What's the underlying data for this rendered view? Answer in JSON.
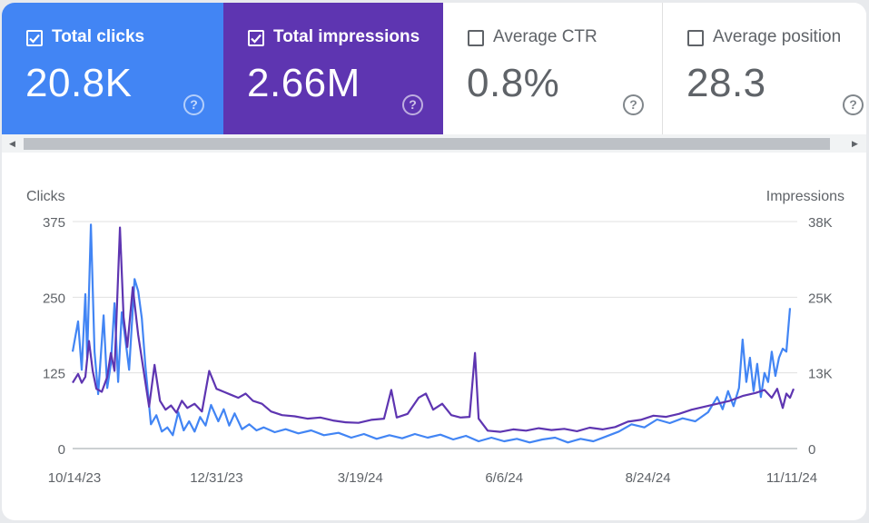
{
  "cards": {
    "clicks": {
      "label": "Total clicks",
      "value": "20.8K",
      "checked": true,
      "color": "#4285f4"
    },
    "impressions": {
      "label": "Total impressions",
      "value": "2.66M",
      "checked": true,
      "color": "#5e35b1"
    },
    "ctr": {
      "label": "Average CTR",
      "value": "0.8%",
      "checked": false
    },
    "position": {
      "label": "Average position",
      "value": "28.3",
      "checked": false
    },
    "help_glyph": "?"
  },
  "scrollbar": {
    "left_arrow": "◀",
    "right_arrow": "▶"
  },
  "chart_data": {
    "type": "line",
    "left_axis_title": "Clicks",
    "right_axis_title": "Impressions",
    "left_ticks": [
      "375",
      "250",
      "125",
      "0"
    ],
    "left_tick_values": [
      375,
      250,
      125,
      0
    ],
    "right_ticks": [
      "38K",
      "25K",
      "13K",
      "0"
    ],
    "x_tick_labels": [
      "10/14/23",
      "12/31/23",
      "3/19/24",
      "6/6/24",
      "8/24/24",
      "11/11/24"
    ],
    "x_start": "2023-10-13",
    "x_end": "2024-11-14",
    "x_tick_dates": [
      "2023-10-14",
      "2023-12-31",
      "2024-03-19",
      "2024-06-06",
      "2024-08-24",
      "2024-11-11"
    ],
    "ylim_left": [
      0,
      375
    ],
    "ylim_right": [
      0,
      38000
    ],
    "grid": true,
    "series": [
      {
        "name": "Clicks",
        "axis": "left",
        "color": "#4285f4",
        "points": [
          [
            "2023-10-13",
            160
          ],
          [
            "2023-10-16",
            210
          ],
          [
            "2023-10-18",
            130
          ],
          [
            "2023-10-20",
            255
          ],
          [
            "2023-10-21",
            150
          ],
          [
            "2023-10-23",
            370
          ],
          [
            "2023-10-25",
            160
          ],
          [
            "2023-10-27",
            90
          ],
          [
            "2023-10-30",
            220
          ],
          [
            "2023-11-01",
            100
          ],
          [
            "2023-11-03",
            140
          ],
          [
            "2023-11-05",
            240
          ],
          [
            "2023-11-07",
            110
          ],
          [
            "2023-11-09",
            225
          ],
          [
            "2023-11-11",
            180
          ],
          [
            "2023-11-13",
            130
          ],
          [
            "2023-11-16",
            280
          ],
          [
            "2023-11-18",
            260
          ],
          [
            "2023-11-20",
            215
          ],
          [
            "2023-11-22",
            135
          ],
          [
            "2023-11-25",
            40
          ],
          [
            "2023-11-28",
            55
          ],
          [
            "2023-12-01",
            28
          ],
          [
            "2023-12-04",
            35
          ],
          [
            "2023-12-07",
            22
          ],
          [
            "2023-12-10",
            60
          ],
          [
            "2023-12-13",
            30
          ],
          [
            "2023-12-16",
            45
          ],
          [
            "2023-12-19",
            28
          ],
          [
            "2023-12-22",
            52
          ],
          [
            "2023-12-25",
            38
          ],
          [
            "2023-12-28",
            72
          ],
          [
            "2024-01-01",
            45
          ],
          [
            "2024-01-04",
            65
          ],
          [
            "2024-01-07",
            38
          ],
          [
            "2024-01-10",
            58
          ],
          [
            "2024-01-14",
            32
          ],
          [
            "2024-01-18",
            40
          ],
          [
            "2024-01-22",
            30
          ],
          [
            "2024-01-26",
            35
          ],
          [
            "2024-02-01",
            27
          ],
          [
            "2024-02-07",
            32
          ],
          [
            "2024-02-14",
            25
          ],
          [
            "2024-02-21",
            30
          ],
          [
            "2024-02-28",
            22
          ],
          [
            "2024-03-07",
            26
          ],
          [
            "2024-03-14",
            18
          ],
          [
            "2024-03-21",
            24
          ],
          [
            "2024-03-28",
            16
          ],
          [
            "2024-04-04",
            22
          ],
          [
            "2024-04-11",
            17
          ],
          [
            "2024-04-18",
            24
          ],
          [
            "2024-04-25",
            18
          ],
          [
            "2024-05-02",
            23
          ],
          [
            "2024-05-09",
            15
          ],
          [
            "2024-05-16",
            21
          ],
          [
            "2024-05-23",
            12
          ],
          [
            "2024-05-30",
            18
          ],
          [
            "2024-06-06",
            12
          ],
          [
            "2024-06-13",
            16
          ],
          [
            "2024-06-20",
            10
          ],
          [
            "2024-06-27",
            15
          ],
          [
            "2024-07-04",
            18
          ],
          [
            "2024-07-11",
            10
          ],
          [
            "2024-07-18",
            16
          ],
          [
            "2024-07-25",
            12
          ],
          [
            "2024-08-01",
            20
          ],
          [
            "2024-08-08",
            28
          ],
          [
            "2024-08-15",
            40
          ],
          [
            "2024-08-22",
            35
          ],
          [
            "2024-08-29",
            48
          ],
          [
            "2024-09-05",
            42
          ],
          [
            "2024-09-12",
            50
          ],
          [
            "2024-09-19",
            45
          ],
          [
            "2024-09-26",
            60
          ],
          [
            "2024-10-01",
            85
          ],
          [
            "2024-10-04",
            65
          ],
          [
            "2024-10-07",
            95
          ],
          [
            "2024-10-10",
            70
          ],
          [
            "2024-10-13",
            100
          ],
          [
            "2024-10-15",
            180
          ],
          [
            "2024-10-17",
            110
          ],
          [
            "2024-10-19",
            150
          ],
          [
            "2024-10-21",
            95
          ],
          [
            "2024-10-23",
            140
          ],
          [
            "2024-10-25",
            85
          ],
          [
            "2024-10-27",
            125
          ],
          [
            "2024-10-29",
            110
          ],
          [
            "2024-10-31",
            160
          ],
          [
            "2024-11-02",
            120
          ],
          [
            "2024-11-04",
            150
          ],
          [
            "2024-11-06",
            165
          ],
          [
            "2024-11-08",
            160
          ],
          [
            "2024-11-10",
            232
          ]
        ]
      },
      {
        "name": "Impressions",
        "axis": "right",
        "color": "#5e35b1",
        "points": [
          [
            "2023-10-13",
            11000
          ],
          [
            "2023-10-16",
            12500
          ],
          [
            "2023-10-18",
            11000
          ],
          [
            "2023-10-20",
            12000
          ],
          [
            "2023-10-22",
            18000
          ],
          [
            "2023-10-24",
            13000
          ],
          [
            "2023-10-26",
            10000
          ],
          [
            "2023-10-29",
            9500
          ],
          [
            "2023-11-01",
            12000
          ],
          [
            "2023-11-03",
            16000
          ],
          [
            "2023-11-05",
            13000
          ],
          [
            "2023-11-08",
            37000
          ],
          [
            "2023-11-10",
            22000
          ],
          [
            "2023-11-12",
            17000
          ],
          [
            "2023-11-15",
            27000
          ],
          [
            "2023-11-18",
            19000
          ],
          [
            "2023-11-21",
            13000
          ],
          [
            "2023-11-24",
            7000
          ],
          [
            "2023-11-27",
            14000
          ],
          [
            "2023-11-30",
            8000
          ],
          [
            "2023-12-03",
            6500
          ],
          [
            "2023-12-06",
            7200
          ],
          [
            "2023-12-09",
            6000
          ],
          [
            "2023-12-12",
            8000
          ],
          [
            "2023-12-15",
            6800
          ],
          [
            "2023-12-19",
            7500
          ],
          [
            "2023-12-23",
            6200
          ],
          [
            "2023-12-27",
            13000
          ],
          [
            "2023-12-31",
            10000
          ],
          [
            "2024-01-04",
            9500
          ],
          [
            "2024-01-08",
            9000
          ],
          [
            "2024-01-12",
            8500
          ],
          [
            "2024-01-16",
            9200
          ],
          [
            "2024-01-20",
            8000
          ],
          [
            "2024-01-25",
            7500
          ],
          [
            "2024-01-30",
            6200
          ],
          [
            "2024-02-05",
            5600
          ],
          [
            "2024-02-12",
            5400
          ],
          [
            "2024-02-19",
            5000
          ],
          [
            "2024-02-26",
            5200
          ],
          [
            "2024-03-04",
            4700
          ],
          [
            "2024-03-11",
            4400
          ],
          [
            "2024-03-18",
            4300
          ],
          [
            "2024-03-25",
            4800
          ],
          [
            "2024-04-01",
            5000
          ],
          [
            "2024-04-05",
            9800
          ],
          [
            "2024-04-08",
            5200
          ],
          [
            "2024-04-14",
            5800
          ],
          [
            "2024-04-20",
            8500
          ],
          [
            "2024-04-24",
            9200
          ],
          [
            "2024-04-28",
            6500
          ],
          [
            "2024-05-03",
            7500
          ],
          [
            "2024-05-08",
            5600
          ],
          [
            "2024-05-13",
            5200
          ],
          [
            "2024-05-18",
            5300
          ],
          [
            "2024-05-21",
            16000
          ],
          [
            "2024-05-23",
            5000
          ],
          [
            "2024-05-28",
            3000
          ],
          [
            "2024-06-04",
            2800
          ],
          [
            "2024-06-11",
            3200
          ],
          [
            "2024-06-18",
            3000
          ],
          [
            "2024-06-25",
            3400
          ],
          [
            "2024-07-02",
            3100
          ],
          [
            "2024-07-09",
            3300
          ],
          [
            "2024-07-16",
            2900
          ],
          [
            "2024-07-23",
            3500
          ],
          [
            "2024-07-30",
            3200
          ],
          [
            "2024-08-06",
            3600
          ],
          [
            "2024-08-13",
            4500
          ],
          [
            "2024-08-20",
            4800
          ],
          [
            "2024-08-27",
            5500
          ],
          [
            "2024-09-03",
            5300
          ],
          [
            "2024-09-10",
            5800
          ],
          [
            "2024-09-17",
            6500
          ],
          [
            "2024-09-24",
            7000
          ],
          [
            "2024-10-01",
            7500
          ],
          [
            "2024-10-08",
            8000
          ],
          [
            "2024-10-15",
            8800
          ],
          [
            "2024-10-22",
            9300
          ],
          [
            "2024-10-27",
            9800
          ],
          [
            "2024-10-31",
            8500
          ],
          [
            "2024-11-03",
            10000
          ],
          [
            "2024-11-06",
            6800
          ],
          [
            "2024-11-08",
            9200
          ],
          [
            "2024-11-10",
            8500
          ],
          [
            "2024-11-12",
            10000
          ]
        ]
      }
    ]
  }
}
